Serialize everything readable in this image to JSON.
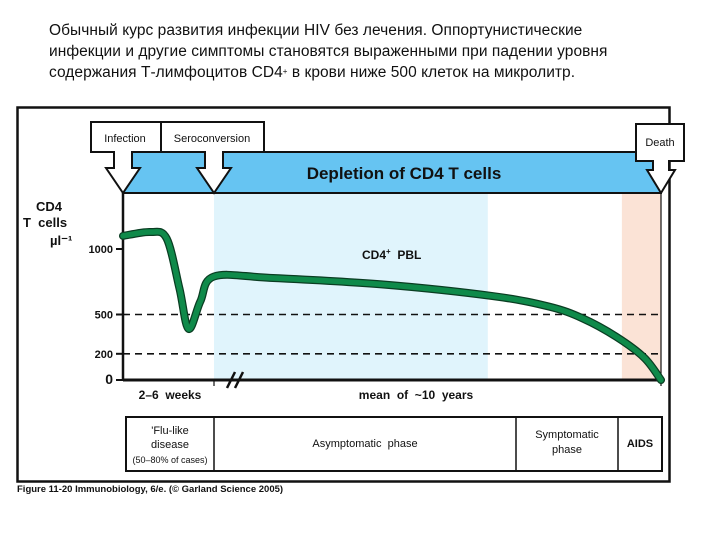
{
  "caption": {
    "line1": "Обычный курс развития инфекции HIV без лечения. Оппортунистические",
    "line2": "инфекции и другие симптомы становятся выраженными при падении уровня",
    "line3_pre": "содержания Т-лимфоцитов CD4",
    "line3_sup": "+",
    "line3_post": " в крови ниже 500 клеток на микролитр."
  },
  "events": {
    "infection": "Infection",
    "seroconversion": "Seroconversion",
    "death": "Death"
  },
  "banner": "Depletion of CD4 T cells",
  "colors": {
    "banner": "#66c4f2",
    "asymptomatic_region": "#e0f4fc",
    "aids_region": "#fbe3d6",
    "curve": "#0f8a4a",
    "curve_outline": "#0a3d22"
  },
  "chart_data": {
    "type": "line",
    "title": "",
    "ylabel_lines": [
      "CD4",
      "T  cells",
      "µl⁻¹"
    ],
    "ylim": [
      0,
      1000
    ],
    "yticks": [
      {
        "value": 1000,
        "label": "1000",
        "dashed": false
      },
      {
        "value": 500,
        "label": "500",
        "dashed": true
      },
      {
        "value": 200,
        "label": "200",
        "dashed": true
      },
      {
        "value": 0,
        "label": "0",
        "dashed": false
      }
    ],
    "x_segments": [
      {
        "label": "2–6  weeks",
        "from": 0,
        "to": 1
      },
      {
        "label": "mean  of  ~10  years",
        "from": 1,
        "to": 5
      }
    ],
    "axis_break": "//",
    "series": [
      {
        "name": "CD4+ PBL",
        "label": "CD4",
        "label_sup": "+",
        "label_post": "  PBL",
        "x": [
          0,
          0.3,
          0.48,
          0.62,
          0.72,
          0.85,
          1.0,
          1.5,
          2.5,
          3.5,
          4.0,
          4.3,
          4.6,
          4.85,
          5.0
        ],
        "values": [
          1100,
          1130,
          1080,
          700,
          390,
          600,
          790,
          780,
          730,
          640,
          560,
          470,
          330,
          170,
          0
        ]
      }
    ],
    "regions": [
      {
        "name": "asymptomatic",
        "from": 1.0,
        "to": 3.45
      },
      {
        "name": "aids",
        "from": 4.65,
        "to": 5.0
      }
    ],
    "x_range": [
      0,
      5
    ]
  },
  "phases": [
    {
      "line1": "'Flu-like",
      "line2": "disease",
      "line3": "(50–80% of cases)"
    },
    {
      "line1": "Asymptomatic  phase"
    },
    {
      "line1": "Symptomatic",
      "line2": "phase"
    },
    {
      "line1": "AIDS"
    }
  ],
  "footer": "Figure 11-20  Immunobiology, 6/e. (© Garland Science 2005)"
}
